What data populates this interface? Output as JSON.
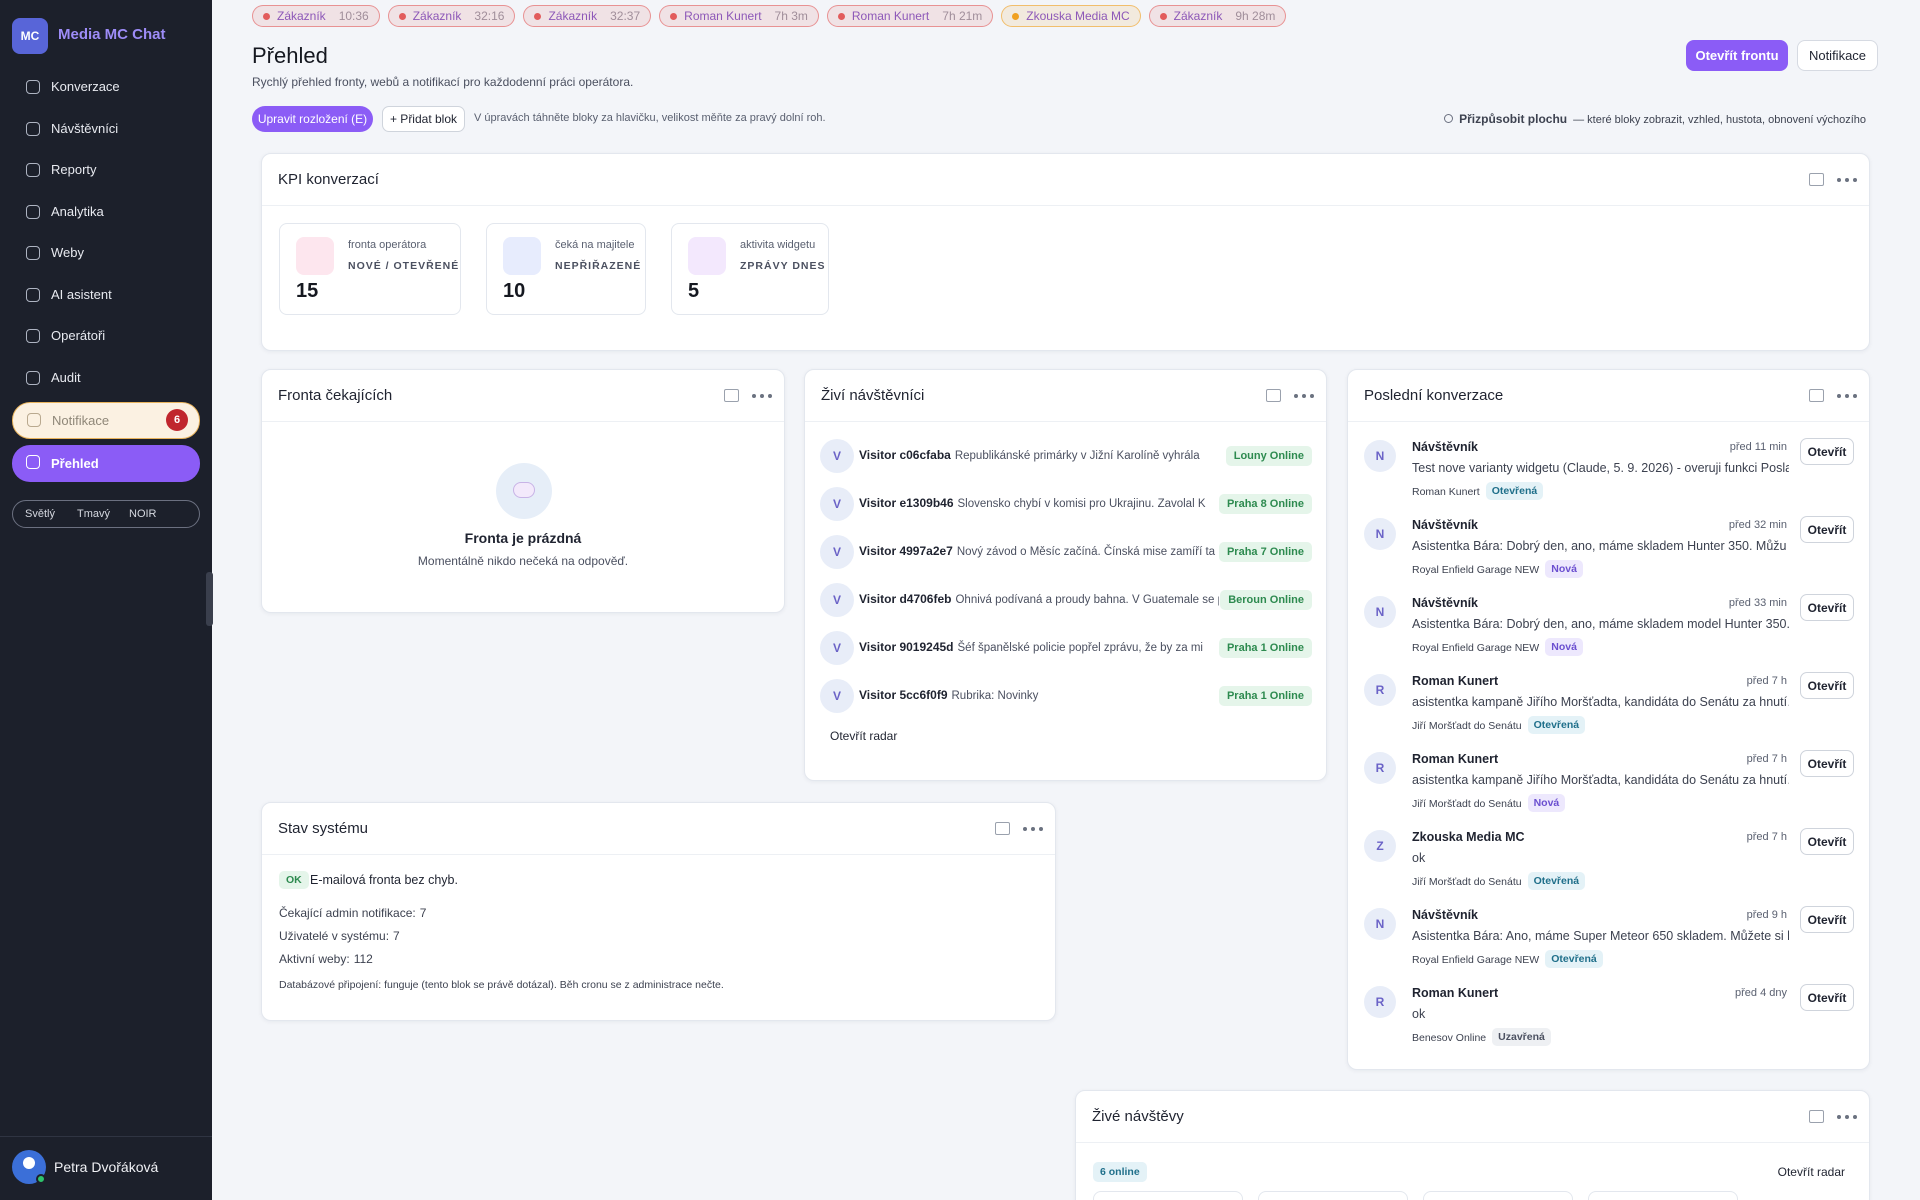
{
  "sidebar": {
    "logo": "MC",
    "brand": "Media MC Chat",
    "nav": [
      {
        "label": "Konverzace"
      },
      {
        "label": "Návštěvníci"
      },
      {
        "label": "Reporty"
      },
      {
        "label": "Analytika"
      },
      {
        "label": "Weby"
      },
      {
        "label": "AI asistent"
      },
      {
        "label": "Operátoři"
      },
      {
        "label": "Audit"
      }
    ],
    "notifications": {
      "label": "Notifikace",
      "badge": 6
    },
    "current": {
      "label": "Přehled"
    },
    "themes": [
      "Světlý",
      "Tmavý",
      "NOIR"
    ],
    "user": "Petra Dvořáková"
  },
  "tabs": [
    {
      "label": "Zákazník",
      "time": "10:36",
      "color": "#e25c5c"
    },
    {
      "label": "Zákazník",
      "time": "32:16",
      "color": "#e25c5c"
    },
    {
      "label": "Zákazník",
      "time": "32:37",
      "color": "#e25c5c"
    },
    {
      "label": "Roman Kunert",
      "time": "7h 3m",
      "color": "#e25c5c"
    },
    {
      "label": "Roman Kunert",
      "time": "7h 21m",
      "color": "#e25c5c"
    },
    {
      "label": "Zkouska Media MC",
      "color": "#f0a020"
    },
    {
      "label": "Zákazník",
      "time": "9h 28m",
      "color": "#e25c5c"
    }
  ],
  "header": {
    "title": "Přehled",
    "subtitle": "Rychlý přehled fronty, webů a notifikací pro každodenní práci operátora.",
    "primary_button": "Otevřít frontu",
    "secondary_button": "Notifikace"
  },
  "toolbar": {
    "edit_button": "Upravit rozložení (E)",
    "add_button": "+ Přidat blok",
    "hint": "V úpravách táhněte bloky za hlavičku, velikost měňte za pravý dolní roh.",
    "customize": "Přizpůsobit plochu",
    "customize_hint": "— které bloky zobrazit, vzhled, hustota, obnovení výchozího"
  },
  "kpi": {
    "title": "KPI konverzací",
    "cards": [
      {
        "caption": "fronta operátora",
        "label": "NOVÉ / OTEVŘENÉ",
        "value": 15,
        "color": "#fde6ee"
      },
      {
        "caption": "čeká na majitele",
        "label": "NEPŘIŘAZENÉ",
        "value": 10,
        "color": "#e7ecfd"
      },
      {
        "caption": "aktivita widgetu",
        "label": "ZPRÁVY DNES",
        "value": 5,
        "color": "#f3e8fd"
      }
    ]
  },
  "queue": {
    "title": "Fronta čekajících",
    "empty_title": "Fronta je prázdná",
    "empty_text": "Momentálně nikdo nečeká na odpověď."
  },
  "live_visitors": {
    "title": "Živí návštěvníci",
    "rows": [
      {
        "avatar": "V",
        "name": "Visitor c06cfaba",
        "page": "Republikánské primárky v Jižní Karolíně vyhrála",
        "location": "Louny Online"
      },
      {
        "avatar": "V",
        "name": "Visitor e1309b46",
        "page": "Slovensko chybí v komisi pro Ukrajinu. Zavolal K",
        "location": "Praha 8 Online"
      },
      {
        "avatar": "V",
        "name": "Visitor 4997a2e7",
        "page": "Nový závod o Měsíc začíná. Čínská mise zamíří ta",
        "location": "Praha 7 Online"
      },
      {
        "avatar": "V",
        "name": "Visitor d4706feb",
        "page": "Ohnivá podívaná a proudy bahna. V Guatemale se p",
        "location": "Beroun Online"
      },
      {
        "avatar": "V",
        "name": "Visitor 9019245d",
        "page": "Šéf španělské policie popřel zprávu, že by za mi",
        "location": "Praha 1 Online"
      },
      {
        "avatar": "V",
        "name": "Visitor 5cc6f0f9",
        "page": "Rubrika: Novinky",
        "location": "Praha 1 Online"
      }
    ],
    "link": "Otevřít radar"
  },
  "recent": {
    "title": "Poslední konverzace",
    "open_label": "Otevřít",
    "rows": [
      {
        "avatar": "N",
        "name": "Návštěvník",
        "time": "před 11 min",
        "message": "Test nove varianty widgetu (Claude, 5. 9. 2026) - overuji funkci Posla…",
        "site": "Roman Kunert",
        "status": "Otevřená"
      },
      {
        "avatar": "N",
        "name": "Návštěvník",
        "time": "před 32 min",
        "message": "Asistentka Bára: Dobrý den, ano, máme skladem Hunter 350. Můžu …",
        "site": "Royal Enfield Garage NEW",
        "status": "Nová"
      },
      {
        "avatar": "N",
        "name": "Návštěvník",
        "time": "před 33 min",
        "message": "Asistentka Bára: Dobrý den, ano, máme skladem model Hunter 350.…",
        "site": "Royal Enfield Garage NEW",
        "status": "Nová"
      },
      {
        "avatar": "R",
        "name": "Roman Kunert",
        "time": "před 7 h",
        "message": "asistentka kampaně Jiřího Moršťadta, kandidáta do Senátu za hnutí…",
        "site": "Jiří Moršťadt do Senátu",
        "status": "Otevřená"
      },
      {
        "avatar": "R",
        "name": "Roman Kunert",
        "time": "před 7 h",
        "message": "asistentka kampaně Jiřího Moršťadta, kandidáta do Senátu za hnutí…",
        "site": "Jiří Moršťadt do Senátu",
        "status": "Nová"
      },
      {
        "avatar": "Z",
        "name": "Zkouska Media MC",
        "time": "před 7 h",
        "message": "ok",
        "site": "Jiří Moršťadt do Senátu",
        "status": "Otevřená"
      },
      {
        "avatar": "N",
        "name": "Návštěvník",
        "time": "před 9 h",
        "message": "Asistentka Bára: Ano, máme Super Meteor 650 skladem. Můžete si h…",
        "site": "Royal Enfield Garage NEW",
        "status": "Otevřená"
      },
      {
        "avatar": "R",
        "name": "Roman Kunert",
        "time": "před 4 dny",
        "message": "ok",
        "site": "Benesov Online",
        "status": "Uzavřená"
      }
    ]
  },
  "system": {
    "title": "Stav systému",
    "ok_badge": "OK",
    "ok_text": "E-mailová fronta bez chyb.",
    "stats": [
      {
        "label": "Čekající admin notifikace:",
        "value": 7
      },
      {
        "label": "Uživatelé v systému:",
        "value": 7
      },
      {
        "label": "Aktivní weby:",
        "value": 112
      }
    ],
    "note": "Databázové připojení: funguje (tento blok se právě dotázal). Běh cronu se z administrace nečte."
  },
  "live_visits": {
    "title": "Živé návštěvy",
    "online_badge": "6 online",
    "link": "Otevřít radar"
  }
}
